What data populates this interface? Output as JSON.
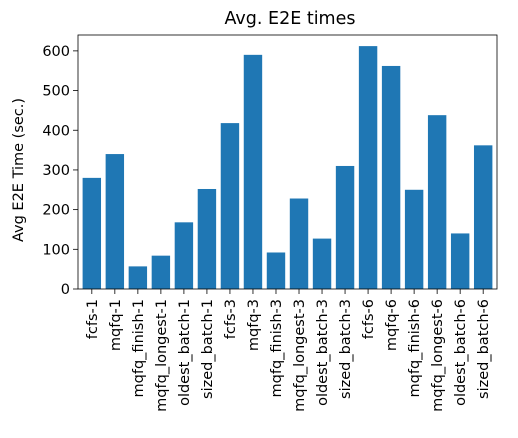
{
  "chart_data": {
    "type": "bar",
    "title": "Avg. E2E times",
    "xlabel": "",
    "ylabel": "Avg E2E Time (sec.)",
    "ylim": [
      0,
      640
    ],
    "yticks": [
      0,
      100,
      200,
      300,
      400,
      500,
      600
    ],
    "grid": false,
    "bar_color": "#1f77b4",
    "categories": [
      "fcfs-1",
      "mqfq-1",
      "mqfq_finish-1",
      "mqfq_longest-1",
      "oldest_batch-1",
      "sized_batch-1",
      "fcfs-3",
      "mqfq-3",
      "mqfq_finish-3",
      "mqfq_longest-3",
      "oldest_batch-3",
      "sized_batch-3",
      "fcfs-6",
      "mqfq-6",
      "mqfq_finish-6",
      "mqfq_longest-6",
      "oldest_batch-6",
      "sized_batch-6"
    ],
    "values": [
      280,
      340,
      57,
      84,
      168,
      252,
      418,
      590,
      92,
      228,
      127,
      310,
      612,
      562,
      250,
      438,
      140,
      362
    ]
  }
}
